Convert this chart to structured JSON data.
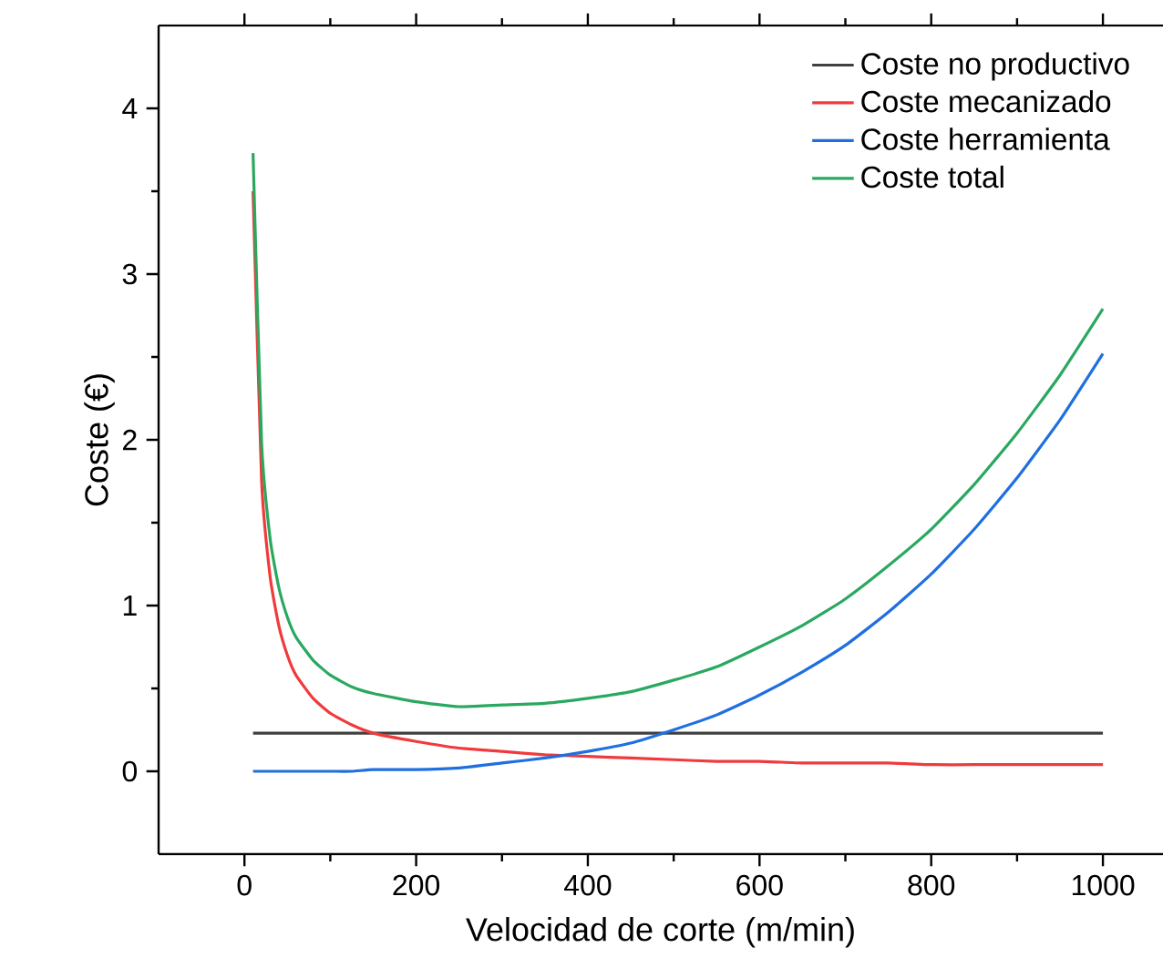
{
  "chart_data": {
    "type": "line",
    "xlabel": "Velocidad de corte (m/min)",
    "ylabel": "Coste (€)",
    "xlim": [
      -100,
      1070
    ],
    "ylim": [
      -0.5,
      4.5
    ],
    "xticks": [
      0,
      200,
      400,
      600,
      800,
      1000
    ],
    "yticks": [
      0,
      1,
      2,
      3,
      4
    ],
    "x": [
      10,
      20,
      30,
      40,
      50,
      60,
      80,
      100,
      125,
      150,
      200,
      250,
      300,
      350,
      400,
      450,
      500,
      550,
      600,
      650,
      700,
      750,
      800,
      850,
      900,
      950,
      1000
    ],
    "legend": "top right",
    "grid": false,
    "marker": "none",
    "line_style": "solid",
    "series": [
      {
        "name": "Coste no productivo",
        "color": "#404040",
        "values": [
          0.23,
          0.23,
          0.23,
          0.23,
          0.23,
          0.23,
          0.23,
          0.23,
          0.23,
          0.23,
          0.23,
          0.23,
          0.23,
          0.23,
          0.23,
          0.23,
          0.23,
          0.23,
          0.23,
          0.23,
          0.23,
          0.23,
          0.23,
          0.23,
          0.23,
          0.23,
          0.23
        ]
      },
      {
        "name": "Coste mecanizado",
        "color": "#f03a3c",
        "values": [
          3.5,
          1.75,
          1.17,
          0.88,
          0.7,
          0.58,
          0.44,
          0.35,
          0.28,
          0.23,
          0.18,
          0.14,
          0.12,
          0.1,
          0.09,
          0.08,
          0.07,
          0.06,
          0.06,
          0.05,
          0.05,
          0.05,
          0.04,
          0.04,
          0.04,
          0.04,
          0.04
        ]
      },
      {
        "name": "Coste herramienta",
        "color": "#1f6fe0",
        "values": [
          0,
          0,
          0,
          0,
          0,
          0,
          0,
          0,
          0,
          0.01,
          0.01,
          0.02,
          0.05,
          0.08,
          0.12,
          0.17,
          0.25,
          0.34,
          0.46,
          0.6,
          0.76,
          0.96,
          1.19,
          1.46,
          1.77,
          2.12,
          2.52
        ]
      },
      {
        "name": "Coste total",
        "color": "#2aa860",
        "values": [
          3.73,
          1.98,
          1.4,
          1.11,
          0.93,
          0.81,
          0.67,
          0.58,
          0.51,
          0.47,
          0.42,
          0.39,
          0.4,
          0.41,
          0.44,
          0.48,
          0.55,
          0.63,
          0.75,
          0.88,
          1.04,
          1.24,
          1.46,
          1.73,
          2.04,
          2.39,
          2.79
        ]
      }
    ]
  }
}
